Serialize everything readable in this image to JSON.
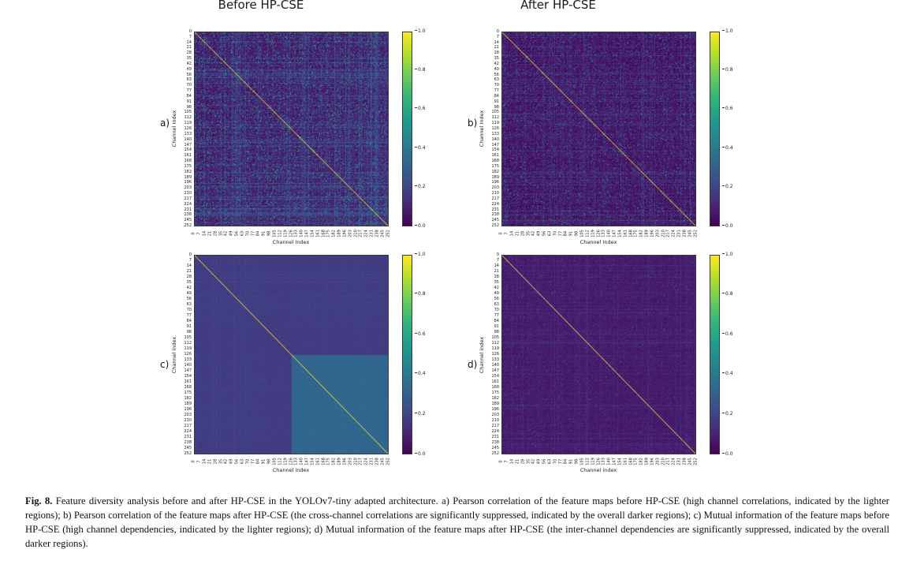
{
  "figure": {
    "titles": [
      {
        "text": "Before HP-CSE"
      },
      {
        "text": "After HP-CSE"
      }
    ],
    "caption": {
      "prefix": "Fig. 8.",
      "body": " Feature diversity analysis before and after HP-CSE in the YOLOv7-tiny adapted architecture. a) Pearson correlation of the feature maps before HP-CSE (high channel correlations, indicated by the lighter regions); b) Pearson correlation of the feature maps after HP-CSE (the cross-channel correlations are significantly suppressed, indicated by the overall darker regions); c) Mutual information of the feature maps before HP-CSE (high channel dependencies, indicated by the lighter regions); d) Mutual information of the feature maps after HP-CSE (the inter-channel dependencies are significantly suppressed, indicated by the overall darker regions)."
    }
  },
  "chart_data": [
    {
      "type": "heatmap",
      "panel_label": "a)",
      "column_title": "Before HP-CSE",
      "description": "Pearson correlation of the feature maps before HP-CSE (high channel correlations, lighter regions)",
      "xlabel": "Channel Index",
      "ylabel": "Channel Index",
      "channels": 253,
      "tick_values": [
        0,
        7,
        14,
        21,
        28,
        35,
        42,
        49,
        56,
        63,
        70,
        77,
        84,
        91,
        98,
        105,
        112,
        119,
        126,
        133,
        140,
        147,
        154,
        161,
        168,
        175,
        182,
        189,
        196,
        203,
        210,
        217,
        224,
        231,
        238,
        245,
        252
      ],
      "colormap": "viridis",
      "value_range": [
        0.0,
        1.0
      ],
      "colorbar_ticks": [
        "1.0",
        "0.8",
        "0.6",
        "0.4",
        "0.2",
        "0.0"
      ],
      "pattern": {
        "seed": 11,
        "diagonal": 1.0,
        "base": 0.06,
        "noise": 0.07,
        "streak_amp": 0.3,
        "ramp": 0.05,
        "sparkle_prob": 0.13,
        "sparkle_min": 0.22,
        "sparkle_max": 0.62,
        "blocks": []
      }
    },
    {
      "type": "heatmap",
      "panel_label": "b)",
      "column_title": "After HP-CSE",
      "description": "Pearson correlation of the feature maps after HP-CSE (cross-channel correlations suppressed, overall darker)",
      "xlabel": "Channel Index",
      "ylabel": "Channel Index",
      "channels": 253,
      "tick_values": [
        0,
        7,
        14,
        21,
        28,
        35,
        42,
        49,
        56,
        63,
        70,
        77,
        84,
        91,
        98,
        105,
        112,
        119,
        126,
        133,
        140,
        147,
        154,
        161,
        168,
        175,
        182,
        189,
        196,
        203,
        210,
        217,
        224,
        231,
        238,
        245,
        252
      ],
      "colormap": "viridis",
      "value_range": [
        0.0,
        1.0
      ],
      "colorbar_ticks": [
        "1.0",
        "0.8",
        "0.6",
        "0.4",
        "0.2",
        "0.0"
      ],
      "pattern": {
        "seed": 22,
        "diagonal": 1.0,
        "base": 0.05,
        "noise": 0.06,
        "streak_amp": 0.18,
        "ramp": 0.0,
        "sparkle_prob": 0.09,
        "sparkle_min": 0.18,
        "sparkle_max": 0.5,
        "blocks": []
      }
    },
    {
      "type": "heatmap",
      "panel_label": "c)",
      "column_title": "Before HP-CSE",
      "description": "Mutual information of the feature maps before HP-CSE (high channel dependencies, lighter regions; bright block over channels ~126-252)",
      "xlabel": "Channel index",
      "ylabel": "Channel index",
      "channels": 253,
      "tick_values": [
        0,
        7,
        14,
        21,
        28,
        35,
        42,
        49,
        56,
        63,
        70,
        77,
        84,
        91,
        98,
        105,
        112,
        119,
        126,
        133,
        140,
        147,
        154,
        161,
        168,
        175,
        182,
        189,
        196,
        203,
        210,
        217,
        224,
        231,
        238,
        245,
        252
      ],
      "colormap": "viridis",
      "value_range": [
        0.0,
        1.0
      ],
      "colorbar_ticks": [
        "1.0",
        "0.8",
        "0.6",
        "0.4",
        "0.2",
        "0.0"
      ],
      "pattern": {
        "seed": 33,
        "diagonal": 1.0,
        "base": 0.175,
        "noise": 0.02,
        "streak_amp": 0.05,
        "ramp": 0.0,
        "sparkle_prob": 0.0,
        "sparkle_min": 0.0,
        "sparkle_max": 0.0,
        "blocks": [
          {
            "from": 127,
            "to": 252,
            "value": 0.325,
            "noise": 0.02
          }
        ]
      }
    },
    {
      "type": "heatmap",
      "panel_label": "d)",
      "column_title": "After HP-CSE",
      "description": "Mutual information of the feature maps after HP-CSE (inter-channel dependencies suppressed, overall darker)",
      "xlabel": "Channel index",
      "ylabel": "Channel index",
      "channels": 253,
      "tick_values": [
        0,
        7,
        14,
        21,
        28,
        35,
        42,
        49,
        56,
        63,
        70,
        77,
        84,
        91,
        98,
        105,
        112,
        119,
        126,
        133,
        140,
        147,
        154,
        161,
        168,
        175,
        182,
        189,
        196,
        203,
        210,
        217,
        224,
        231,
        238,
        245,
        252
      ],
      "colormap": "viridis",
      "value_range": [
        0.0,
        1.0
      ],
      "colorbar_ticks": [
        "1.0",
        "0.8",
        "0.6",
        "0.4",
        "0.2",
        "0.0"
      ],
      "pattern": {
        "seed": 44,
        "diagonal": 1.0,
        "base": 0.07,
        "noise": 0.035,
        "streak_amp": 0.1,
        "ramp": 0.0,
        "sparkle_prob": 0.02,
        "sparkle_min": 0.15,
        "sparkle_max": 0.35,
        "blocks": []
      }
    }
  ]
}
